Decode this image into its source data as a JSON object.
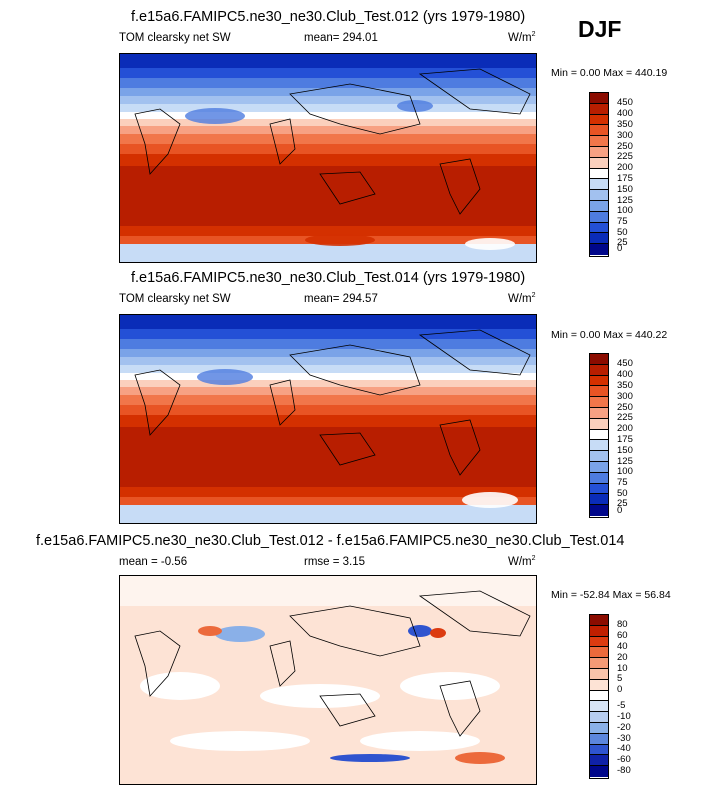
{
  "season": "DJF",
  "panels": [
    {
      "title": "f.e15a6.FAMIPC5.ne30_ne30.Club_Test.012 (yrs 1979-1980)",
      "left_label": "TOM clearsky net SW",
      "center_label": "mean= 294.01",
      "units_base": "W/m",
      "units_exp": "2",
      "minmax": "Min =   0.00 Max = 440.19"
    },
    {
      "title": "f.e15a6.FAMIPC5.ne30_ne30.Club_Test.014 (yrs 1979-1980)",
      "left_label": "TOM clearsky net SW",
      "center_label": "mean= 294.57",
      "units_base": "W/m",
      "units_exp": "2",
      "minmax": "Min =   0.00 Max = 440.22"
    },
    {
      "title": "f.e15a6.FAMIPC5.ne30_ne30.Club_Test.012 - f.e15a6.FAMIPC5.ne30_ne30.Club_Test.014",
      "left_label": "mean =  -0.56",
      "center_label": "rmse =   3.15",
      "units_base": "W/m",
      "units_exp": "2",
      "minmax": "Min = -52.84 Max =  56.84"
    }
  ],
  "chart_data": [
    {
      "type": "heatmap",
      "title": "f.e15a6.FAMIPC5.ne30_ne30.Club_Test.012 (yrs 1979-1980)",
      "variable": "TOM clearsky net SW",
      "units": "W/m2",
      "mean": 294.01,
      "min": 0.0,
      "max": 440.19,
      "colorbar_levels": [
        "450",
        "400",
        "350",
        "300",
        "250",
        "225",
        "200",
        "175",
        "150",
        "125",
        "100",
        "75",
        "50",
        "25",
        "0"
      ],
      "colorbar_colors": [
        "#8b0c00",
        "#b81e00",
        "#d43000",
        "#e85424",
        "#f1764a",
        "#f7a183",
        "#fbd0bd",
        "#ffffff",
        "#c7dcf6",
        "#a2c1ef",
        "#7aa3e8",
        "#4e7ce0",
        "#2450d6",
        "#0a2cb8",
        "#00078a"
      ]
    },
    {
      "type": "heatmap",
      "title": "f.e15a6.FAMIPC5.ne30_ne30.Club_Test.014 (yrs 1979-1980)",
      "variable": "TOM clearsky net SW",
      "units": "W/m2",
      "mean": 294.57,
      "min": 0.0,
      "max": 440.22,
      "colorbar_levels": [
        "450",
        "400",
        "350",
        "300",
        "250",
        "225",
        "200",
        "175",
        "150",
        "125",
        "100",
        "75",
        "50",
        "25",
        "0"
      ],
      "colorbar_colors": [
        "#8b0c00",
        "#b81e00",
        "#d43000",
        "#e85424",
        "#f1764a",
        "#f7a183",
        "#fbd0bd",
        "#ffffff",
        "#c7dcf6",
        "#a2c1ef",
        "#7aa3e8",
        "#4e7ce0",
        "#2450d6",
        "#0a2cb8",
        "#00078a"
      ]
    },
    {
      "type": "heatmap",
      "title": "f.e15a6.FAMIPC5.ne30_ne30.Club_Test.012 - f.e15a6.FAMIPC5.ne30_ne30.Club_Test.014",
      "units": "W/m2",
      "mean": -0.56,
      "rmse": 3.15,
      "min": -52.84,
      "max": 56.84,
      "colorbar_levels": [
        "80",
        "60",
        "40",
        "20",
        "10",
        "5",
        "0",
        "-5",
        "-10",
        "-20",
        "-30",
        "-40",
        "-60",
        "-80"
      ],
      "colorbar_colors": [
        "#8b0c00",
        "#c01f00",
        "#dc3b10",
        "#ec6a3c",
        "#f49a76",
        "#f9c4ab",
        "#fde3d5",
        "#ffffff",
        "#d7e4f6",
        "#b7cdf0",
        "#8ab0e8",
        "#5c86dd",
        "#2f54cf",
        "#1022a8",
        "#00078a"
      ]
    }
  ]
}
